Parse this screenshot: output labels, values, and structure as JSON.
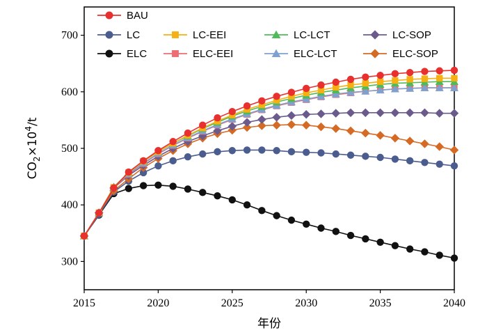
{
  "chart_data": {
    "type": "line",
    "xlabel": "年份",
    "ylabel_parts": [
      "CO",
      "2",
      "×10",
      "4",
      "/t"
    ],
    "x": [
      2015,
      2016,
      2017,
      2018,
      2019,
      2020,
      2021,
      2022,
      2023,
      2024,
      2025,
      2026,
      2027,
      2028,
      2029,
      2030,
      2031,
      2032,
      2033,
      2034,
      2035,
      2036,
      2037,
      2038,
      2039,
      2040
    ],
    "xlim": [
      2015,
      2040
    ],
    "ylim": [
      250,
      750
    ],
    "xticks": [
      2015,
      2020,
      2025,
      2030,
      2035,
      2040
    ],
    "yticks": [
      300,
      400,
      500,
      600,
      700
    ],
    "legend_position": "top",
    "series": [
      {
        "name": "BAU",
        "color": "#e8302f",
        "marker": "circle",
        "values": [
          345,
          386,
          430,
          458,
          478,
          496,
          512,
          527,
          541,
          554,
          565,
          575,
          584,
          592,
          599,
          606,
          612,
          617,
          622,
          626,
          629,
          632,
          634,
          636,
          637,
          638
        ]
      },
      {
        "name": "LC",
        "color": "#4a5d8e",
        "marker": "circle",
        "values": [
          345,
          383,
          423,
          442,
          457,
          469,
          478,
          485,
          490,
          494,
          496,
          497,
          497,
          496,
          494,
          493,
          492,
          490,
          488,
          486,
          484,
          481,
          478,
          475,
          472,
          469
        ]
      },
      {
        "name": "LC-EEI",
        "color": "#f5b013",
        "marker": "square",
        "values": [
          345,
          386,
          431,
          457,
          477,
          494,
          509,
          523,
          536,
          548,
          559,
          569,
          577,
          585,
          592,
          598,
          603,
          608,
          612,
          615,
          618,
          620,
          622,
          623,
          624,
          624
        ]
      },
      {
        "name": "LC-LCT",
        "color": "#4fba58",
        "marker": "triangle",
        "values": [
          345,
          386,
          432,
          457,
          477,
          494,
          509,
          522,
          535,
          546,
          557,
          566,
          574,
          582,
          588,
          594,
          599,
          603,
          607,
          610,
          613,
          615,
          616,
          617,
          618,
          618
        ]
      },
      {
        "name": "LC-SOP",
        "color": "#6b5b8c",
        "marker": "diamond",
        "values": [
          345,
          386,
          430,
          452,
          470,
          486,
          500,
          512,
          522,
          531,
          539,
          546,
          551,
          555,
          558,
          560,
          561,
          562,
          563,
          563,
          563,
          563,
          563,
          563,
          562,
          562
        ]
      },
      {
        "name": "ELC",
        "color": "#111111",
        "marker": "circle",
        "values": [
          345,
          382,
          420,
          429,
          434,
          435,
          433,
          428,
          422,
          416,
          409,
          400,
          390,
          381,
          373,
          366,
          359,
          353,
          346,
          340,
          334,
          328,
          322,
          317,
          311,
          306
        ]
      },
      {
        "name": "ELC-EEI",
        "color": "#ee6d72",
        "marker": "square",
        "values": [
          345,
          386,
          430,
          454,
          473,
          490,
          505,
          518,
          530,
          541,
          551,
          560,
          568,
          575,
          581,
          586,
          591,
          595,
          598,
          601,
          603,
          605,
          606,
          607,
          607,
          607
        ]
      },
      {
        "name": "ELC-LCT",
        "color": "#7ea1cf",
        "marker": "triangle",
        "values": [
          345,
          386,
          431,
          455,
          474,
          491,
          506,
          519,
          531,
          542,
          552,
          561,
          569,
          576,
          582,
          587,
          592,
          596,
          599,
          601,
          603,
          605,
          606,
          607,
          607,
          607
        ]
      },
      {
        "name": "ELC-SOP",
        "color": "#d46a24",
        "marker": "diamond",
        "values": [
          345,
          386,
          425,
          446,
          466,
          482,
          496,
          508,
          518,
          526,
          532,
          537,
          540,
          541,
          542,
          541,
          538,
          535,
          531,
          527,
          523,
          518,
          513,
          508,
          503,
          497
        ]
      }
    ]
  }
}
